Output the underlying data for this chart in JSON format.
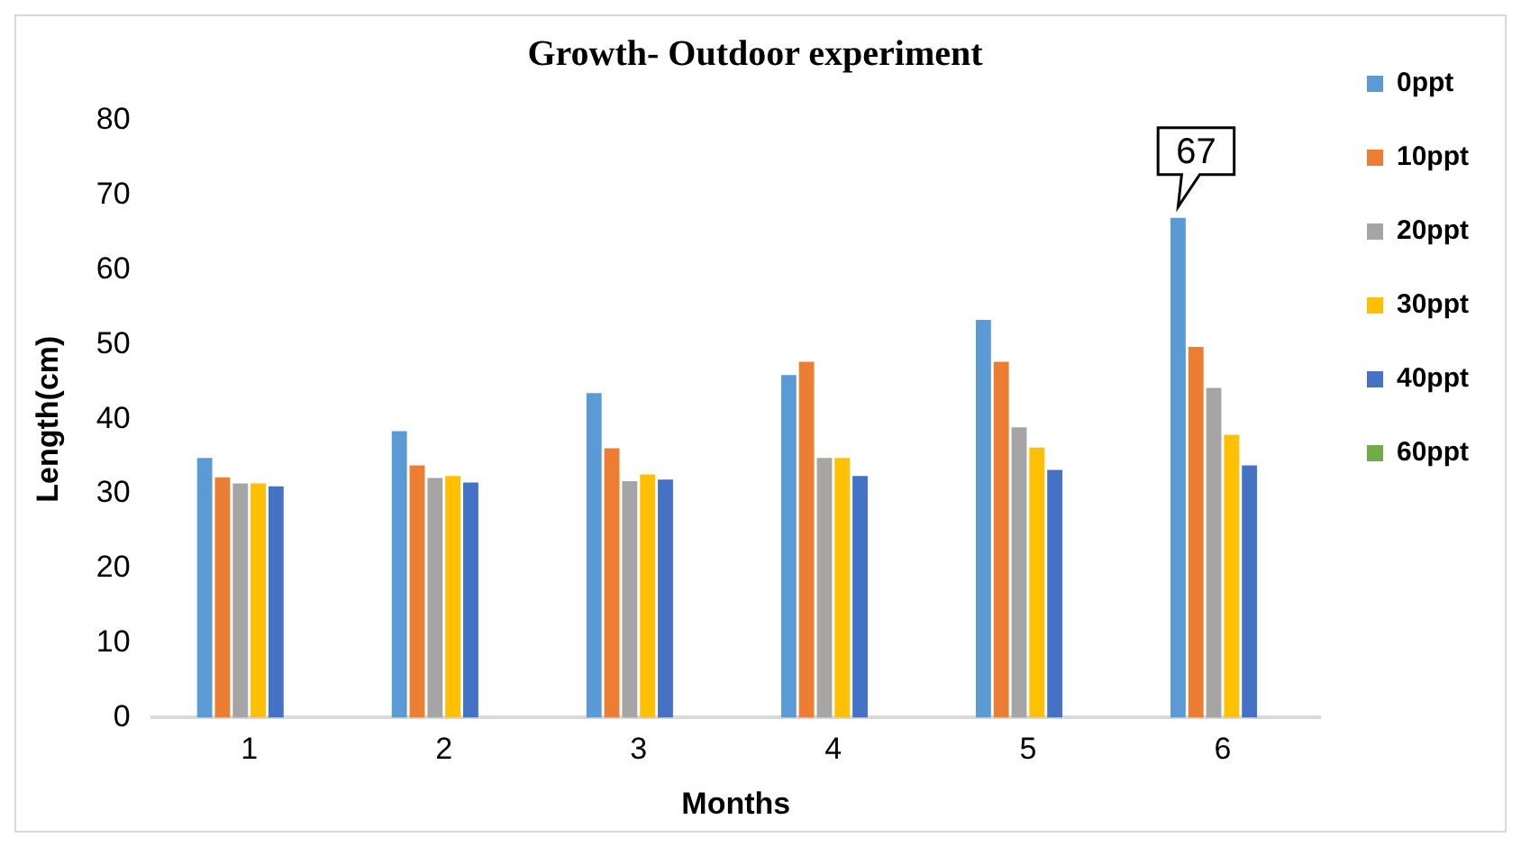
{
  "chart_data": {
    "type": "bar",
    "title": "Growth- Outdoor experiment",
    "xlabel": "Months",
    "ylabel": "Length(cm)",
    "categories": [
      "1",
      "2",
      "3",
      "4",
      "5",
      "6"
    ],
    "series": [
      {
        "name": "0ppt",
        "color": "#5b9bd5",
        "values": [
          34.8,
          38.4,
          43.5,
          45.9,
          53.3,
          67
        ],
        "value_labels": [
          null,
          null,
          null,
          null,
          null,
          "67"
        ]
      },
      {
        "name": "10ppt",
        "color": "#ed7d31",
        "values": [
          32.2,
          33.8,
          36.1,
          47.7,
          47.7,
          49.7
        ]
      },
      {
        "name": "20ppt",
        "color": "#a5a5a5",
        "values": [
          31.4,
          32.1,
          31.7,
          34.8,
          38.9,
          44.2
        ]
      },
      {
        "name": "30ppt",
        "color": "#ffc000",
        "values": [
          31.4,
          32.4,
          32.6,
          34.8,
          36.2,
          37.9
        ]
      },
      {
        "name": "40ppt",
        "color": "#4472c4",
        "values": [
          31.0,
          31.5,
          31.9,
          32.4,
          33.2,
          33.8
        ]
      },
      {
        "name": "60ppt",
        "color": "#70ad47",
        "values": [
          null,
          null,
          null,
          null,
          null,
          null
        ]
      }
    ],
    "ylim": [
      0,
      80
    ],
    "yticks": [
      0,
      10,
      20,
      30,
      40,
      50,
      60,
      70,
      80
    ],
    "grid": false,
    "legend": "right"
  }
}
